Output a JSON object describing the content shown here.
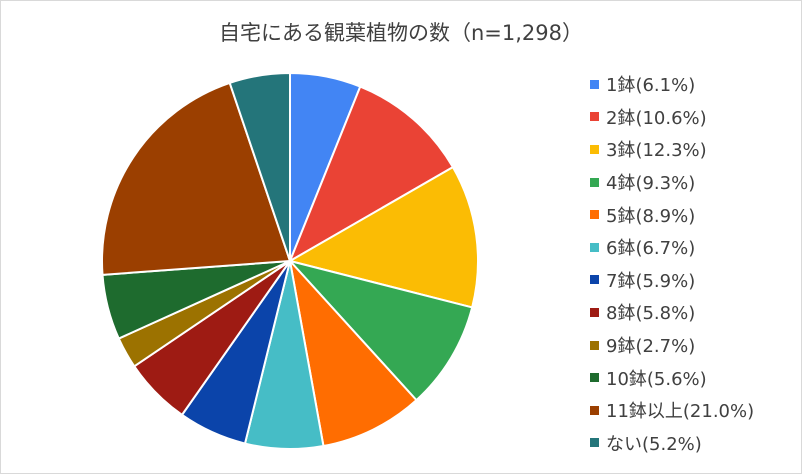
{
  "chart_data": {
    "type": "pie",
    "title": "自宅にある観葉植物の数（n=1,298）",
    "legend_position": "right",
    "slices": [
      {
        "label": "1鉢(6.1%)",
        "value": 6.1,
        "color": "#4285F4"
      },
      {
        "label": "2鉢(10.6%)",
        "value": 10.6,
        "color": "#EA4335"
      },
      {
        "label": "3鉢(12.3%)",
        "value": 12.3,
        "color": "#FBBC04"
      },
      {
        "label": "4鉢(9.3%)",
        "value": 9.3,
        "color": "#34A853"
      },
      {
        "label": "5鉢(8.9%)",
        "value": 8.9,
        "color": "#FF6D01"
      },
      {
        "label": "6鉢(6.7%)",
        "value": 6.7,
        "color": "#46BDC6"
      },
      {
        "label": "7鉢(5.9%)",
        "value": 5.9,
        "color": "#0B44AA"
      },
      {
        "label": "8鉢(5.8%)",
        "value": 5.8,
        "color": "#9E1B13"
      },
      {
        "label": "9鉢(2.7%)",
        "value": 2.7,
        "color": "#9C7200"
      },
      {
        "label": "10鉢(5.6%)",
        "value": 5.6,
        "color": "#1E6B2E"
      },
      {
        "label": "11鉢以上(21.0%)",
        "value": 21.0,
        "color": "#9B3F00"
      },
      {
        "label": "ない(5.2%)",
        "value": 5.2,
        "color": "#24757A"
      }
    ]
  }
}
